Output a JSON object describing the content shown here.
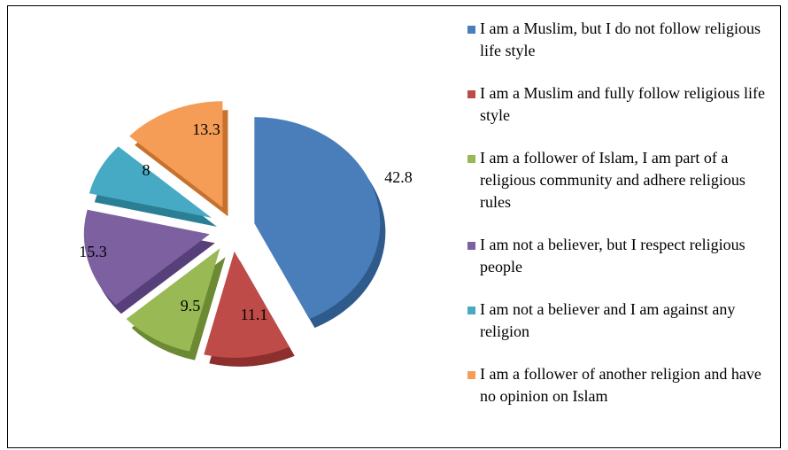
{
  "chart_data": {
    "type": "pie",
    "exploded": true,
    "three_d": true,
    "legend_position": "right",
    "categories": [
      "I am a Muslim, but I do not follow religious life style",
      "I am a Muslim and fully follow religious life style",
      "I am a follower of Islam, I am part of a religious community and adhere religious rules",
      "I am not a believer, but I respect religious people",
      "I am not a believer and I am against any religion",
      "I am a follower of another religion and have no opinion on Islam"
    ],
    "values": [
      42.8,
      11.1,
      9.5,
      15.3,
      8,
      13.3
    ],
    "value_labels": [
      "42.8",
      "11.1",
      "9.5",
      "15.3",
      "8",
      "13.3"
    ],
    "colors": [
      "#4a7ebb",
      "#be4b48",
      "#98b954",
      "#7d60a0",
      "#46aac4",
      "#f59d56"
    ],
    "side_colors": [
      "#2e5a8c",
      "#8c2f2d",
      "#6c8a33",
      "#57407a",
      "#2a7f95",
      "#c6722e"
    ]
  }
}
